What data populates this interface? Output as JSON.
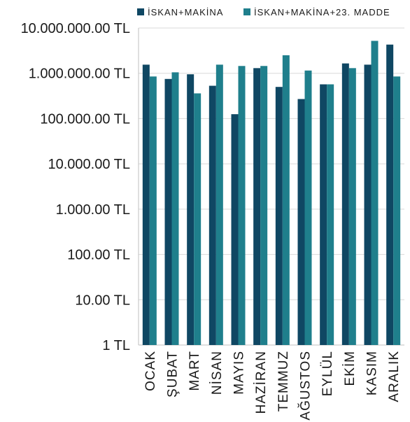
{
  "chart_data": {
    "type": "bar",
    "log_scale": true,
    "ylim": [
      1,
      10000000
    ],
    "grid": true,
    "legend_position": "top-right",
    "categories": [
      "OCAK",
      "ŞUBAT",
      "MART",
      "NİSAN",
      "MAYIS",
      "HAZİRAN",
      "TEMMUZ",
      "AĞUSTOS",
      "EYLÜL",
      "EKİM",
      "KASIM",
      "ARALIK"
    ],
    "y_tick_values": [
      1,
      10,
      100,
      1000,
      10000,
      100000,
      1000000,
      10000000
    ],
    "y_tick_labels": [
      "1 TL",
      "10.00 TL",
      "100.00 TL",
      "1.000.00 TL",
      "10.000.00 TL",
      "100.000.00 TL",
      "1.000.000.00 TL",
      "10.000.000.00 TL"
    ],
    "series": [
      {
        "name": "İSKAN+MAKİNA",
        "color": "#0f4763",
        "values": [
          1550000,
          750000,
          950000,
          530000,
          125000,
          1300000,
          500000,
          270000,
          570000,
          1650000,
          1550000,
          4300000
        ]
      },
      {
        "name": "İSKAN+MAKİNA+23. MADDE",
        "color": "#1f7f8c",
        "values": [
          850000,
          1050000,
          360000,
          1550000,
          1450000,
          1450000,
          2500000,
          1150000,
          570000,
          1300000,
          5200000,
          850000
        ]
      }
    ]
  }
}
